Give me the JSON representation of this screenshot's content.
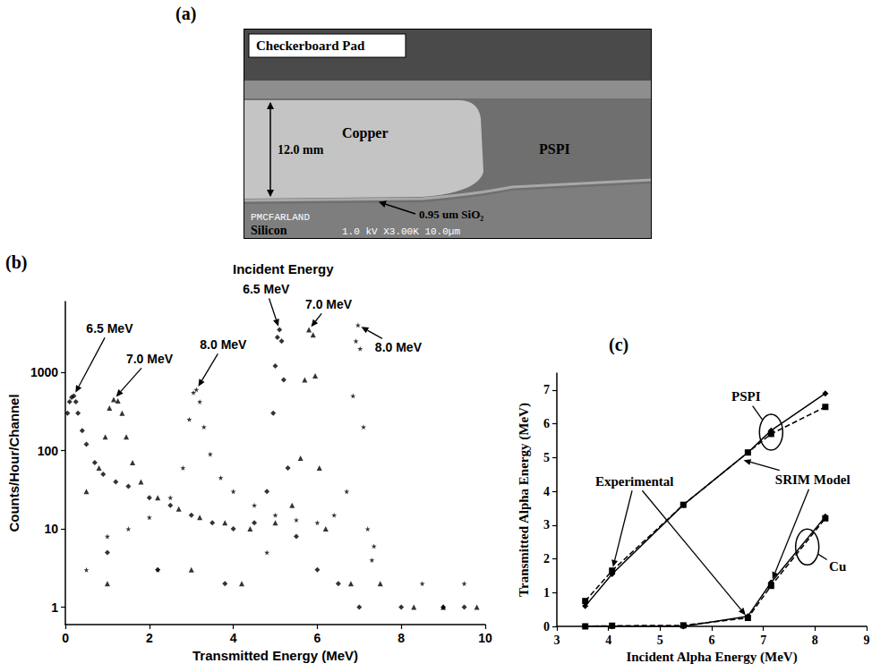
{
  "image": {
    "panel": "(a)",
    "box_title": "Checkerboard Pad",
    "labels": {
      "copper": "Copper",
      "pspi": "PSPI",
      "thickness": "12.0 mm",
      "oxide": "0.95 um SiO₂",
      "operator": "PMCFARLAND",
      "substrate": "Silicon",
      "sem_info": "1.0 kV X3.00K 10.0µm"
    }
  },
  "chart_data": [
    {
      "panel": "(b)",
      "type": "scatter",
      "title": "Incident Energy",
      "x_label": "Transmitted Energy (MeV)",
      "y_label": "Counts/Hour/Channel",
      "xlim": [
        0,
        10
      ],
      "xticks": [
        0,
        2,
        4,
        6,
        8,
        10
      ],
      "ylim": [
        0.6,
        8000
      ],
      "yticks": [
        1,
        10,
        100,
        1000
      ],
      "log": "y",
      "grid": false,
      "series": [
        {
          "marker": "diamond",
          "color": "#000000",
          "x": [
            0.05,
            0.1,
            0.15,
            0.2,
            0.25,
            0.3,
            0.4,
            0.5,
            0.7,
            0.9,
            1.0,
            1.2,
            1.5,
            2.0,
            2.2,
            2.5,
            3.0,
            3.5,
            3.8,
            4.0,
            4.5,
            4.8,
            4.95,
            5.0,
            5.05,
            5.1,
            5.15,
            5.2,
            5.3,
            5.5,
            6.0,
            6.5,
            7.0,
            8.0,
            9.0,
            9.5
          ],
          "values": [
            300,
            420,
            480,
            500,
            420,
            300,
            180,
            120,
            70,
            50,
            5,
            40,
            35,
            25,
            3,
            20,
            15,
            12,
            2,
            10,
            12,
            30,
            300,
            1200,
            2800,
            3500,
            2500,
            800,
            60,
            8,
            3,
            2,
            1,
            1,
            1,
            1
          ]
        },
        {
          "marker": "triangle",
          "color": "#000000",
          "x": [
            0.5,
            0.8,
            0.95,
            1.0,
            1.05,
            1.15,
            1.25,
            1.35,
            1.45,
            1.6,
            1.8,
            2.2,
            2.7,
            3.0,
            3.2,
            3.8,
            4.2,
            4.4,
            5.0,
            5.4,
            5.6,
            5.7,
            5.8,
            5.9,
            5.95,
            6.05,
            6.2,
            6.8,
            7.5,
            8.3,
            9.0,
            9.8
          ],
          "values": [
            30,
            60,
            150,
            2,
            350,
            450,
            430,
            300,
            150,
            70,
            40,
            25,
            18,
            3,
            14,
            12,
            2,
            10,
            12,
            20,
            80,
            800,
            3500,
            3000,
            900,
            60,
            10,
            2,
            2,
            1,
            1,
            1
          ]
        },
        {
          "marker": "star",
          "color": "#000000",
          "x": [
            0.5,
            1.0,
            1.5,
            2.0,
            2.2,
            2.5,
            2.8,
            2.95,
            3.05,
            3.12,
            3.2,
            3.3,
            3.45,
            3.7,
            4.0,
            4.5,
            4.8,
            5.0,
            5.5,
            6.0,
            6.4,
            6.7,
            6.85,
            6.92,
            6.97,
            7.02,
            7.1,
            7.2,
            7.3,
            7.35,
            8.5,
            9.0,
            9.5
          ],
          "values": [
            3,
            8,
            10,
            14,
            3,
            25,
            60,
            250,
            550,
            600,
            420,
            200,
            90,
            45,
            30,
            20,
            5,
            15,
            13,
            12,
            15,
            30,
            500,
            2500,
            4000,
            2000,
            200,
            10,
            4,
            6,
            2,
            1,
            2
          ]
        }
      ],
      "annotations": [
        {
          "text": "6.5 MeV",
          "targets": [
            [
              0.2,
              500
            ]
          ]
        },
        {
          "text": "7.0 MeV",
          "targets": [
            [
              1.15,
              450
            ]
          ]
        },
        {
          "text": "8.0 MeV",
          "targets": [
            [
              3.12,
              600
            ]
          ]
        },
        {
          "text": "6.5 MeV",
          "targets": [
            [
              5.1,
              3500
            ]
          ]
        },
        {
          "text": "7.0 MeV",
          "targets": [
            [
              5.8,
              3500
            ]
          ]
        },
        {
          "text": "8.0 MeV",
          "targets": [
            [
              6.97,
              4000
            ]
          ]
        }
      ]
    },
    {
      "panel": "(c)",
      "type": "line",
      "x_label": "Incident Alpha Energy (MeV)",
      "y_label": "Transmitted Alpha Energy (MeV)",
      "xlim": [
        3,
        9
      ],
      "xticks": [
        3,
        4,
        5,
        6,
        7,
        8,
        9
      ],
      "ylim": [
        0,
        7.5
      ],
      "yticks": [
        0,
        1,
        2,
        3,
        4,
        5,
        6,
        7
      ],
      "grid": false,
      "series": [
        {
          "marker": "diamond",
          "line_style": "solid",
          "color": "#000000",
          "x": [
            3.55,
            4.07,
            5.45,
            6.7,
            7.15,
            8.2
          ],
          "values": [
            0.6,
            1.55,
            3.6,
            5.15,
            5.8,
            6.9
          ]
        },
        {
          "marker": "square",
          "line_style": "dashed",
          "color": "#000000",
          "x": [
            3.55,
            4.07,
            5.45,
            6.7,
            7.15,
            8.2
          ],
          "values": [
            0.75,
            1.65,
            3.6,
            5.15,
            5.7,
            6.5
          ]
        },
        {
          "marker": "diamond",
          "line_style": "solid",
          "color": "#000000",
          "x": [
            3.55,
            4.07,
            5.45,
            6.7,
            7.15,
            8.2
          ],
          "values": [
            0,
            0,
            0,
            0.3,
            1.3,
            3.25
          ]
        },
        {
          "marker": "square",
          "line_style": "dashed",
          "color": "#000000",
          "x": [
            3.55,
            4.07,
            5.45,
            6.7,
            7.15,
            8.2
          ],
          "values": [
            0,
            0.02,
            0.03,
            0.25,
            1.2,
            3.2
          ]
        }
      ],
      "annotations": [
        {
          "text": "PSPI",
          "targets": [
            [
              7.15,
              5.75
            ]
          ]
        },
        {
          "text": "Cu",
          "targets": [
            [
              7.85,
              2.35
            ]
          ]
        },
        {
          "text": "Experimental",
          "targets": [
            [
              4.07,
              1.65
            ],
            [
              6.7,
              0.25
            ]
          ]
        },
        {
          "text": "SRIM Model",
          "targets": [
            [
              6.55,
              4.95
            ],
            [
              7.15,
              1.3
            ]
          ]
        }
      ]
    }
  ]
}
